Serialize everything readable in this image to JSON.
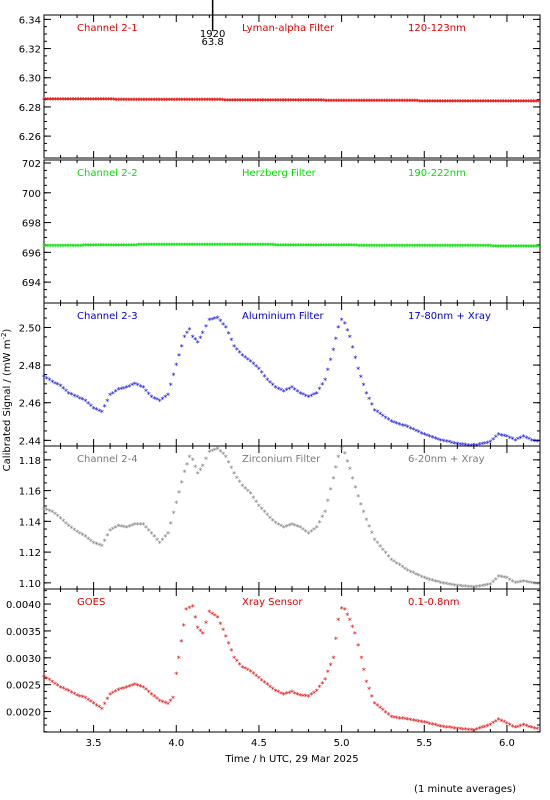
{
  "figure": {
    "ylabel": "Calibrated Signal / (mW m",
    "ylabel_sup": "-2",
    "ylabel_tail": ")",
    "xlabel": "Time / h UTC, 29 Mar 2025",
    "footnote": "(1 minute averages)"
  },
  "chart_data": [
    {
      "type": "scatter",
      "title": "Channel 2-1",
      "filter": "Lyman-alpha Filter",
      "band": "120-123nm",
      "color": "#e00000",
      "marker": "asterisk",
      "xlim": [
        3.2,
        6.2
      ],
      "ylim": [
        6.245,
        6.343
      ],
      "yticks": [
        6.26,
        6.28,
        6.3,
        6.32,
        6.34
      ],
      "ytick_labels": [
        "6.26",
        "6.28",
        "6.30",
        "6.32",
        "6.34"
      ],
      "annotation": {
        "x": 4.22,
        "line1": "1920",
        "line2": "63.8"
      },
      "x": [
        3.2,
        3.5,
        3.8,
        4.1,
        4.4,
        4.7,
        5.0,
        5.3,
        5.6,
        5.9,
        6.2
      ],
      "y": [
        6.2852,
        6.285,
        6.2848,
        6.2847,
        6.2845,
        6.2843,
        6.2842,
        6.284,
        6.2838,
        6.2837,
        6.2836
      ]
    },
    {
      "type": "scatter",
      "title": "Channel 2-2",
      "filter": "Herzberg Filter",
      "band": "190-222nm",
      "color": "#00e000",
      "marker": "asterisk",
      "xlim": [
        3.2,
        6.2
      ],
      "ylim": [
        692.6,
        702.2
      ],
      "yticks": [
        694,
        696,
        698,
        700,
        702
      ],
      "ytick_labels": [
        "694",
        "696",
        "698",
        "700",
        "702"
      ],
      "x": [
        3.2,
        3.5,
        3.8,
        4.1,
        4.4,
        4.7,
        5.0,
        5.3,
        5.6,
        5.9,
        6.2
      ],
      "y": [
        696.42,
        696.45,
        696.48,
        696.5,
        696.49,
        696.47,
        696.45,
        696.43,
        696.42,
        696.41,
        696.4
      ]
    },
    {
      "type": "scatter",
      "title": "Channel 2-3",
      "filter": "Aluminium Filter",
      "band": "17-80nm + Xray",
      "color": "#0000dd",
      "marker": "asterisk",
      "xlim": [
        3.2,
        6.2
      ],
      "ylim": [
        2.437,
        2.513
      ],
      "yticks": [
        2.44,
        2.46,
        2.48,
        2.5
      ],
      "ytick_labels": [
        "2.44",
        "2.46",
        "2.48",
        "2.50"
      ],
      "x": [
        3.2,
        3.25,
        3.3,
        3.35,
        3.4,
        3.45,
        3.5,
        3.55,
        3.6,
        3.65,
        3.7,
        3.75,
        3.8,
        3.85,
        3.9,
        3.95,
        4.0,
        4.05,
        4.08,
        4.1,
        4.13,
        4.16,
        4.2,
        4.25,
        4.3,
        4.35,
        4.4,
        4.45,
        4.5,
        4.55,
        4.6,
        4.65,
        4.7,
        4.75,
        4.8,
        4.85,
        4.9,
        4.95,
        4.98,
        5.0,
        5.02,
        5.05,
        5.1,
        5.15,
        5.2,
        5.3,
        5.4,
        5.5,
        5.6,
        5.7,
        5.8,
        5.9,
        5.95,
        6.0,
        6.05,
        6.1,
        6.15,
        6.2
      ],
      "y": [
        2.474,
        2.471,
        2.469,
        2.465,
        2.463,
        2.461,
        2.457,
        2.455,
        2.464,
        2.467,
        2.468,
        2.47,
        2.468,
        2.463,
        2.461,
        2.464,
        2.48,
        2.495,
        2.499,
        2.495,
        2.492,
        2.497,
        2.504,
        2.505,
        2.5,
        2.49,
        2.485,
        2.482,
        2.478,
        2.472,
        2.468,
        2.466,
        2.468,
        2.465,
        2.463,
        2.465,
        2.472,
        2.488,
        2.5,
        2.504,
        2.502,
        2.495,
        2.478,
        2.465,
        2.456,
        2.45,
        2.447,
        2.443,
        2.44,
        2.438,
        2.437,
        2.439,
        2.443,
        2.442,
        2.44,
        2.442,
        2.44,
        2.439
      ]
    },
    {
      "type": "scatter",
      "title": "Channel 2-4",
      "filter": "Zirconium Filter",
      "band": "6-20nm + Xray",
      "color": "#7a7a7a",
      "marker": "asterisk",
      "xlim": [
        3.2,
        6.2
      ],
      "ylim": [
        1.096,
        1.189
      ],
      "yticks": [
        1.1,
        1.12,
        1.14,
        1.16,
        1.18
      ],
      "ytick_labels": [
        "1.10",
        "1.12",
        "1.14",
        "1.16",
        "1.18"
      ],
      "x": [
        3.2,
        3.25,
        3.3,
        3.35,
        3.4,
        3.45,
        3.5,
        3.55,
        3.6,
        3.65,
        3.7,
        3.75,
        3.8,
        3.85,
        3.9,
        3.95,
        4.0,
        4.05,
        4.08,
        4.1,
        4.13,
        4.16,
        4.2,
        4.25,
        4.3,
        4.35,
        4.4,
        4.45,
        4.5,
        4.55,
        4.6,
        4.65,
        4.7,
        4.75,
        4.8,
        4.85,
        4.9,
        4.95,
        4.98,
        5.0,
        5.02,
        5.05,
        5.1,
        5.15,
        5.2,
        5.3,
        5.4,
        5.5,
        5.6,
        5.7,
        5.8,
        5.9,
        5.95,
        6.0,
        6.05,
        6.1,
        6.15,
        6.2
      ],
      "y": [
        1.148,
        1.146,
        1.142,
        1.137,
        1.133,
        1.13,
        1.126,
        1.124,
        1.134,
        1.137,
        1.136,
        1.138,
        1.138,
        1.132,
        1.126,
        1.132,
        1.152,
        1.172,
        1.182,
        1.18,
        1.171,
        1.176,
        1.185,
        1.187,
        1.182,
        1.171,
        1.163,
        1.158,
        1.15,
        1.144,
        1.139,
        1.136,
        1.138,
        1.136,
        1.132,
        1.136,
        1.146,
        1.168,
        1.182,
        1.187,
        1.184,
        1.174,
        1.156,
        1.141,
        1.128,
        1.115,
        1.108,
        1.103,
        1.1,
        1.098,
        1.097,
        1.099,
        1.104,
        1.103,
        1.1,
        1.101,
        1.1,
        1.099
      ]
    },
    {
      "type": "scatter",
      "title": "GOES",
      "filter": "Xray Sensor",
      "band": "0.1-0.8nm",
      "color": "#e00000",
      "marker": "asterisk",
      "xlim": [
        3.2,
        6.2
      ],
      "ylim": [
        0.00162,
        0.00428
      ],
      "yticks": [
        0.002,
        0.0025,
        0.003,
        0.0035,
        0.004
      ],
      "ytick_labels": [
        "0.0020",
        "0.0025",
        "0.0030",
        "0.0035",
        "0.0040"
      ],
      "x": [
        3.2,
        3.25,
        3.3,
        3.35,
        3.4,
        3.45,
        3.5,
        3.55,
        3.6,
        3.65,
        3.7,
        3.75,
        3.8,
        3.85,
        3.9,
        3.95,
        3.98,
        4.0,
        4.03,
        4.06,
        4.1,
        4.13,
        4.16,
        4.2,
        4.25,
        4.3,
        4.35,
        4.4,
        4.45,
        4.5,
        4.55,
        4.6,
        4.65,
        4.7,
        4.75,
        4.8,
        4.85,
        4.9,
        4.95,
        4.98,
        5.0,
        5.02,
        5.05,
        5.08,
        5.12,
        5.15,
        5.2,
        5.3,
        5.4,
        5.5,
        5.6,
        5.7,
        5.8,
        5.9,
        5.95,
        6.0,
        6.05,
        6.1,
        6.15,
        6.2
      ],
      "y": [
        0.00265,
        0.00255,
        0.00245,
        0.00238,
        0.0023,
        0.00225,
        0.00215,
        0.00205,
        0.00232,
        0.0024,
        0.00245,
        0.0025,
        0.00245,
        0.00232,
        0.0022,
        0.00214,
        0.00225,
        0.0027,
        0.0033,
        0.0039,
        0.00395,
        0.00355,
        0.00345,
        0.00385,
        0.00375,
        0.0034,
        0.003,
        0.00282,
        0.00275,
        0.00262,
        0.0025,
        0.00238,
        0.00232,
        0.00236,
        0.0023,
        0.00228,
        0.00238,
        0.0026,
        0.003,
        0.0037,
        0.00392,
        0.0039,
        0.0037,
        0.00345,
        0.003,
        0.00255,
        0.00215,
        0.0019,
        0.00185,
        0.0018,
        0.00172,
        0.00168,
        0.00165,
        0.00175,
        0.00185,
        0.00178,
        0.0017,
        0.00175,
        0.0017,
        0.00166
      ]
    }
  ]
}
